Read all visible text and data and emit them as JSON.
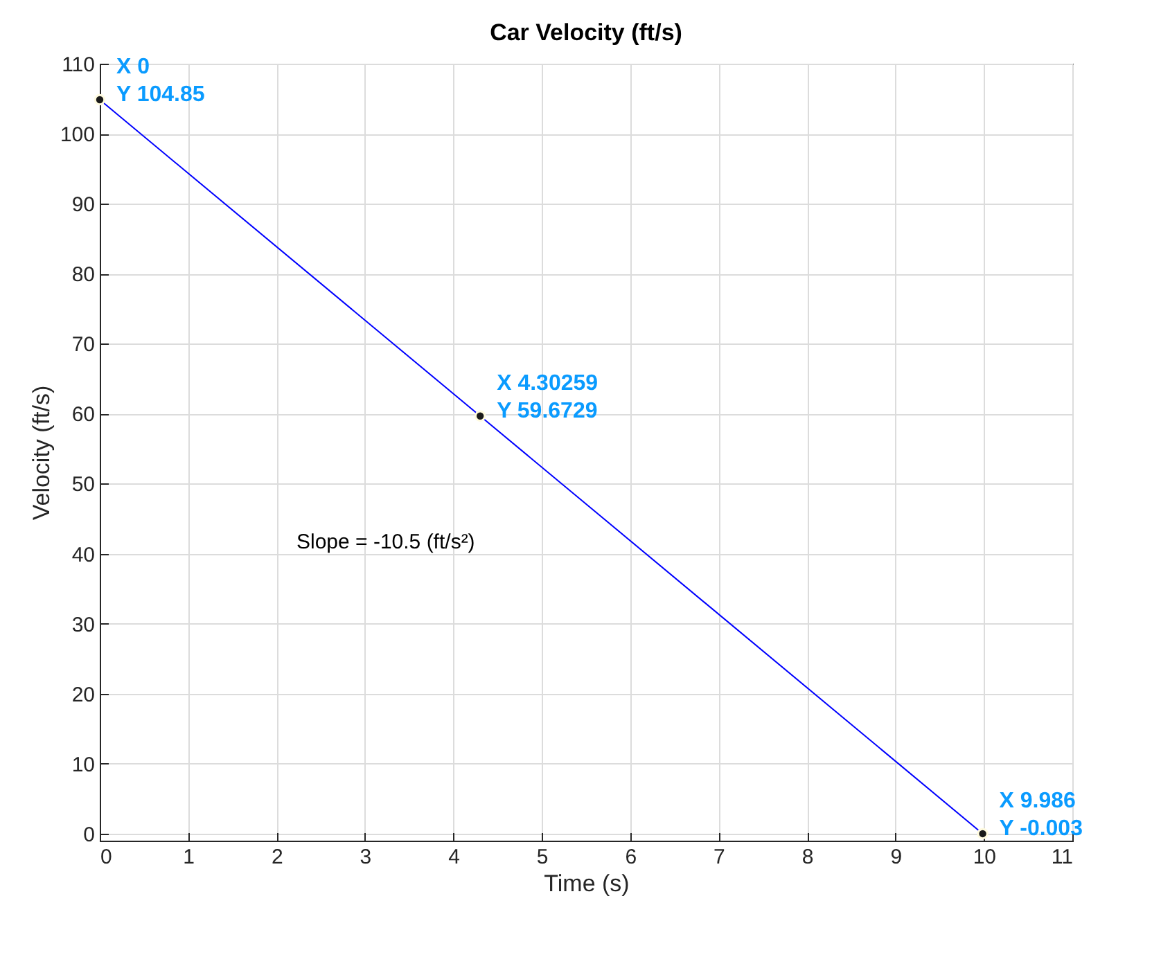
{
  "chart_data": {
    "type": "line",
    "title": "Car Velocity (ft/s)",
    "xlabel": "Time (s)",
    "ylabel": "Velocity (ft/s)",
    "x": [
      0,
      4.30259,
      9.986
    ],
    "series": [
      {
        "color": "#0000ff",
        "values": [
          104.85,
          59.6729,
          -0.003
        ]
      }
    ],
    "xlim": [
      0,
      11
    ],
    "xticks": [
      0,
      1,
      2,
      3,
      4,
      5,
      6,
      7,
      8,
      9,
      10,
      11
    ],
    "ylim": [
      -1,
      110
    ],
    "yticks": [
      0,
      10,
      20,
      30,
      40,
      50,
      60,
      70,
      80,
      90,
      100,
      110
    ],
    "grid": true,
    "marker": "circle",
    "line_style": "solid",
    "annotations": [
      {
        "text": "X 0\nY 104.85",
        "x": 0,
        "y": 104.85
      },
      {
        "text": "X 4.30259\nY 59.6729",
        "x": 4.30259,
        "y": 59.6729
      },
      {
        "text": "X 9.986\nY -0.003",
        "x": 9.986,
        "y": -0.003
      },
      "Slope = -10.5 (ft/s²)"
    ]
  }
}
